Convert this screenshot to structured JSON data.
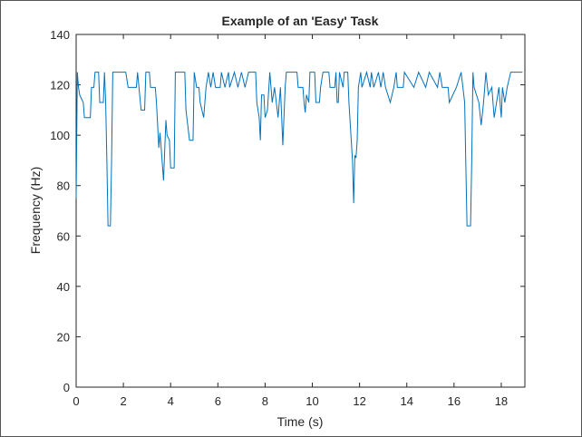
{
  "chart_data": {
    "type": "line",
    "title": "Example of an 'Easy' Task",
    "xlabel": "Time (s)",
    "ylabel": "Frequency (Hz)",
    "color": "#0072bd",
    "x": [
      0,
      0.05,
      0.1,
      0.15,
      0.3,
      0.35,
      0.6,
      0.65,
      0.75,
      0.8,
      0.95,
      1.0,
      1.15,
      1.2,
      1.25,
      1.3,
      1.35,
      1.45,
      1.5,
      1.55,
      2.1,
      2.2,
      2.55,
      2.6,
      2.75,
      2.9,
      2.95,
      3.1,
      3.15,
      3.35,
      3.4,
      3.5,
      3.55,
      3.6,
      3.7,
      3.8,
      3.85,
      3.95,
      4.0,
      4.15,
      4.2,
      4.6,
      4.65,
      4.8,
      4.95,
      5.0,
      5.1,
      5.2,
      5.25,
      5.4,
      5.5,
      5.6,
      5.7,
      5.8,
      5.9,
      6.1,
      6.15,
      6.3,
      6.45,
      6.5,
      6.7,
      6.85,
      7.0,
      7.15,
      7.3,
      7.6,
      7.65,
      7.75,
      7.8,
      7.85,
      7.95,
      8.0,
      8.1,
      8.2,
      8.3,
      8.4,
      8.55,
      8.65,
      8.75,
      8.85,
      8.9,
      9.35,
      9.4,
      9.6,
      9.65,
      9.7,
      9.75,
      9.85,
      9.9,
      10.1,
      10.15,
      10.3,
      10.35,
      10.45,
      10.7,
      10.75,
      10.95,
      11.0,
      11.05,
      11.1,
      11.15,
      11.3,
      11.35,
      11.5,
      11.55,
      11.7,
      11.75,
      11.8,
      11.85,
      11.9,
      11.95,
      12.05,
      12.1,
      12.3,
      12.45,
      12.5,
      12.6,
      12.8,
      12.9,
      13.0,
      13.1,
      13.3,
      13.45,
      13.55,
      13.6,
      13.85,
      13.9,
      14.3,
      14.5,
      14.8,
      14.95,
      15.3,
      15.4,
      15.5,
      15.75,
      15.8,
      16.1,
      16.3,
      16.45,
      16.5,
      16.55,
      16.7,
      16.75,
      16.8,
      16.85,
      17.05,
      17.15,
      17.25,
      17.35,
      17.45,
      17.6,
      17.7,
      17.8,
      17.9,
      18.0,
      18.05,
      18.15,
      18.25,
      18.4,
      18.9
    ],
    "values": [
      75,
      125,
      119,
      116,
      113,
      107,
      107,
      119,
      119,
      125,
      125,
      113,
      113,
      125,
      113,
      90,
      64,
      64,
      90,
      125,
      125,
      119,
      119,
      125,
      110,
      110,
      125,
      125,
      119,
      119,
      113,
      95,
      101,
      95,
      82,
      106,
      100,
      98,
      87,
      87,
      125,
      125,
      110,
      98,
      98,
      125,
      119,
      119,
      113,
      107,
      119,
      125,
      119,
      125,
      119,
      119,
      125,
      119,
      125,
      119,
      125,
      119,
      125,
      119,
      125,
      125,
      113,
      107,
      98,
      116,
      116,
      107,
      110,
      125,
      113,
      119,
      107,
      119,
      96,
      119,
      125,
      125,
      119,
      119,
      113,
      109,
      116,
      113,
      125,
      125,
      113,
      113,
      119,
      125,
      125,
      119,
      119,
      125,
      113,
      113,
      125,
      119,
      125,
      125,
      113,
      90,
      73,
      92,
      91,
      98,
      119,
      125,
      119,
      125,
      119,
      125,
      119,
      125,
      119,
      125,
      119,
      113,
      119,
      125,
      119,
      119,
      125,
      119,
      125,
      119,
      125,
      119,
      125,
      119,
      119,
      113,
      119,
      125,
      113,
      88,
      64,
      64,
      90,
      125,
      119,
      113,
      104,
      113,
      125,
      116,
      119,
      107,
      113,
      119,
      107,
      119,
      113,
      119,
      125,
      125
    ],
    "xlim": [
      0,
      19
    ],
    "ylim": [
      0,
      140
    ],
    "xticks": [
      0,
      2,
      4,
      6,
      8,
      10,
      12,
      14,
      16,
      18
    ],
    "yticks": [
      0,
      20,
      40,
      60,
      80,
      100,
      120,
      140
    ]
  }
}
